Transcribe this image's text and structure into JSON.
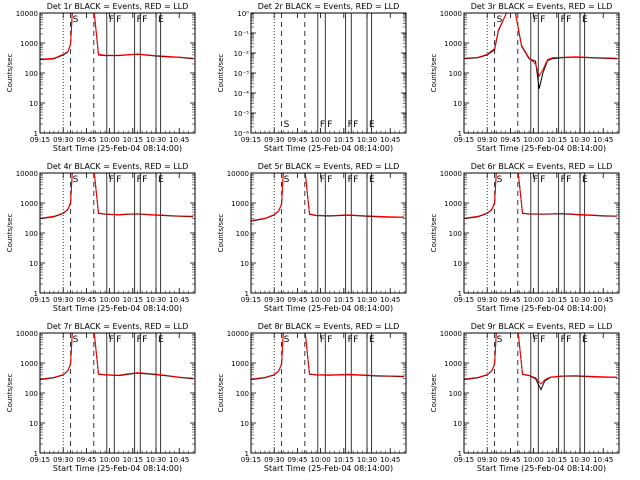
{
  "figure": {
    "xlabel": "Start Time (25-Feb-04 08:14:00)",
    "ylabel": "Counts/sec",
    "xticks": [
      "09:15",
      "09:30",
      "09:45",
      "10:00",
      "10:15",
      "10:30",
      "10:45"
    ],
    "yticks_log": [
      "1",
      "10",
      "100",
      "1000",
      "10000"
    ],
    "yticks_det2": [
      "10⁰",
      "10⁻¹",
      "10⁻²",
      "10⁻³",
      "10⁻⁴",
      "10⁻⁵",
      "10⁻⁶"
    ],
    "colors": {
      "events": "#000000",
      "lld": "#ff0000"
    },
    "markers": [
      {
        "t": 9.5,
        "style": "dotted",
        "label": ""
      },
      {
        "t": 9.58,
        "style": "dashed",
        "label": "S"
      },
      {
        "t": 9.83,
        "style": "dashed",
        "label": ""
      },
      {
        "t": 9.97,
        "style": "solid",
        "label": "F"
      },
      {
        "t": 10.05,
        "style": "solid",
        "label": "F"
      },
      {
        "t": 10.27,
        "style": "solid",
        "label": "F"
      },
      {
        "t": 10.33,
        "style": "solid",
        "label": "F"
      },
      {
        "t": 10.5,
        "style": "solid",
        "label": "E"
      },
      {
        "t": 10.55,
        "style": "solid",
        "label": ""
      }
    ]
  },
  "chart_data": [
    {
      "type": "line",
      "title": "Det 1r BLACK = Events, RED = LLD",
      "scale": "log",
      "ylim": [
        1,
        10000
      ],
      "xlim": [
        9.25,
        10.92
      ],
      "series": [
        {
          "name": "Events",
          "x": [
            9.25,
            9.4,
            9.5,
            9.55,
            9.58,
            9.6,
            9.83,
            9.88,
            9.95,
            10.1,
            10.2,
            10.3,
            10.45,
            10.6,
            10.75,
            10.9
          ],
          "y": [
            280,
            300,
            400,
            500,
            900,
            15000,
            15000,
            400,
            380,
            380,
            400,
            420,
            380,
            350,
            330,
            300
          ]
        },
        {
          "name": "LLD",
          "x": [
            9.25,
            9.4,
            9.5,
            9.55,
            9.58,
            9.6,
            9.83,
            9.88,
            9.95,
            10.1,
            10.2,
            10.3,
            10.45,
            10.6,
            10.75,
            10.9
          ],
          "y": [
            290,
            310,
            420,
            520,
            950,
            15000,
            15000,
            420,
            390,
            390,
            410,
            430,
            390,
            360,
            340,
            310
          ]
        }
      ]
    },
    {
      "type": "line",
      "title": "Det 2r BLACK = Events, RED = LLD",
      "scale": "log",
      "ylim": [
        1e-06,
        1
      ],
      "xlim": [
        9.25,
        10.92
      ],
      "series": []
    },
    {
      "type": "line",
      "title": "Det 3r BLACK = Events, RED = LLD",
      "scale": "log",
      "ylim": [
        1,
        10000
      ],
      "xlim": [
        9.25,
        10.92
      ],
      "series": [
        {
          "name": "Events",
          "x": [
            9.25,
            9.4,
            9.5,
            9.58,
            9.62,
            9.72,
            9.8,
            9.87,
            9.95,
            10.02,
            10.06,
            10.1,
            10.15,
            10.2,
            10.3,
            10.45,
            10.6,
            10.9
          ],
          "y": [
            300,
            320,
            400,
            600,
            2500,
            12000,
            12000,
            800,
            300,
            250,
            30,
            100,
            260,
            300,
            320,
            340,
            320,
            300
          ]
        },
        {
          "name": "LLD",
          "x": [
            9.25,
            9.4,
            9.5,
            9.58,
            9.62,
            9.72,
            9.8,
            9.87,
            9.95,
            10.02,
            10.06,
            10.1,
            10.15,
            10.2,
            10.3,
            10.45,
            10.6,
            10.9
          ],
          "y": [
            310,
            330,
            420,
            650,
            2700,
            12000,
            12000,
            850,
            320,
            200,
            80,
            130,
            280,
            320,
            330,
            350,
            330,
            310
          ]
        }
      ]
    },
    {
      "type": "line",
      "title": "Det 4r BLACK = Events, RED = LLD",
      "scale": "log",
      "ylim": [
        1,
        10000
      ],
      "xlim": [
        9.25,
        10.92
      ],
      "series": [
        {
          "name": "Events",
          "x": [
            9.25,
            9.4,
            9.5,
            9.55,
            9.58,
            9.6,
            9.83,
            9.88,
            9.95,
            10.1,
            10.2,
            10.3,
            10.45,
            10.6,
            10.75,
            10.9
          ],
          "y": [
            300,
            350,
            450,
            600,
            1000,
            15000,
            15000,
            450,
            420,
            400,
            420,
            430,
            400,
            380,
            360,
            350
          ]
        },
        {
          "name": "LLD",
          "x": [
            9.25,
            9.4,
            9.5,
            9.55,
            9.58,
            9.6,
            9.83,
            9.88,
            9.95,
            10.1,
            10.2,
            10.3,
            10.45,
            10.6,
            10.75,
            10.9
          ],
          "y": [
            310,
            360,
            460,
            620,
            1050,
            15000,
            15000,
            460,
            430,
            410,
            430,
            440,
            410,
            390,
            370,
            360
          ]
        }
      ]
    },
    {
      "type": "line",
      "title": "Det 5r BLACK = Events, RED = LLD",
      "scale": "log",
      "ylim": [
        1,
        10000
      ],
      "xlim": [
        9.25,
        10.92
      ],
      "series": [
        {
          "name": "Events",
          "x": [
            9.25,
            9.4,
            9.5,
            9.55,
            9.58,
            9.6,
            9.83,
            9.88,
            9.95,
            10.1,
            10.2,
            10.3,
            10.45,
            10.6,
            10.75,
            10.9
          ],
          "y": [
            250,
            300,
            400,
            550,
            900,
            15000,
            15000,
            420,
            380,
            370,
            380,
            390,
            370,
            350,
            340,
            330
          ]
        },
        {
          "name": "LLD",
          "x": [
            9.25,
            9.4,
            9.5,
            9.55,
            9.58,
            9.6,
            9.83,
            9.88,
            9.95,
            10.1,
            10.2,
            10.3,
            10.45,
            10.6,
            10.75,
            10.9
          ],
          "y": [
            260,
            310,
            410,
            560,
            950,
            15000,
            15000,
            430,
            390,
            380,
            390,
            400,
            380,
            360,
            350,
            340
          ]
        }
      ]
    },
    {
      "type": "line",
      "title": "Det 6r BLACK = Events, RED = LLD",
      "scale": "log",
      "ylim": [
        1,
        10000
      ],
      "xlim": [
        9.25,
        10.92
      ],
      "series": [
        {
          "name": "Events",
          "x": [
            9.25,
            9.4,
            9.5,
            9.55,
            9.58,
            9.6,
            9.83,
            9.88,
            9.95,
            10.1,
            10.2,
            10.3,
            10.45,
            10.6,
            10.75,
            10.9
          ],
          "y": [
            300,
            350,
            450,
            600,
            1000,
            15000,
            15000,
            450,
            430,
            420,
            430,
            440,
            410,
            390,
            370,
            360
          ]
        },
        {
          "name": "LLD",
          "x": [
            9.25,
            9.4,
            9.5,
            9.55,
            9.58,
            9.6,
            9.83,
            9.88,
            9.95,
            10.1,
            10.2,
            10.3,
            10.45,
            10.6,
            10.75,
            10.9
          ],
          "y": [
            310,
            360,
            460,
            620,
            1050,
            15000,
            15000,
            460,
            440,
            430,
            440,
            450,
            420,
            400,
            380,
            370
          ]
        }
      ]
    },
    {
      "type": "line",
      "title": "Det 7r BLACK = Events, RED = LLD",
      "scale": "log",
      "ylim": [
        1,
        10000
      ],
      "xlim": [
        9.25,
        10.92
      ],
      "series": [
        {
          "name": "Events",
          "x": [
            9.25,
            9.4,
            9.5,
            9.55,
            9.58,
            9.6,
            9.83,
            9.88,
            9.95,
            10.1,
            10.2,
            10.3,
            10.45,
            10.6,
            10.75,
            10.9
          ],
          "y": [
            280,
            320,
            400,
            550,
            900,
            15000,
            15000,
            420,
            400,
            380,
            420,
            460,
            420,
            380,
            330,
            300
          ]
        },
        {
          "name": "LLD",
          "x": [
            9.25,
            9.4,
            9.5,
            9.55,
            9.58,
            9.6,
            9.83,
            9.88,
            9.95,
            10.1,
            10.2,
            10.3,
            10.45,
            10.6,
            10.75,
            10.9
          ],
          "y": [
            290,
            330,
            410,
            560,
            950,
            15000,
            15000,
            430,
            410,
            390,
            440,
            480,
            440,
            390,
            340,
            310
          ]
        }
      ]
    },
    {
      "type": "line",
      "title": "Det 8r BLACK = Events, RED = LLD",
      "scale": "log",
      "ylim": [
        1,
        10000
      ],
      "xlim": [
        9.25,
        10.92
      ],
      "series": [
        {
          "name": "Events",
          "x": [
            9.25,
            9.4,
            9.5,
            9.55,
            9.58,
            9.6,
            9.83,
            9.88,
            9.95,
            10.1,
            10.2,
            10.3,
            10.45,
            10.6,
            10.75,
            10.9
          ],
          "y": [
            280,
            320,
            400,
            550,
            900,
            15000,
            15000,
            420,
            400,
            390,
            400,
            410,
            390,
            370,
            360,
            350
          ]
        },
        {
          "name": "LLD",
          "x": [
            9.25,
            9.4,
            9.5,
            9.55,
            9.58,
            9.6,
            9.83,
            9.88,
            9.95,
            10.1,
            10.2,
            10.3,
            10.45,
            10.6,
            10.75,
            10.9
          ],
          "y": [
            290,
            330,
            410,
            560,
            950,
            15000,
            15000,
            430,
            410,
            400,
            410,
            420,
            400,
            380,
            370,
            360
          ]
        }
      ]
    },
    {
      "type": "line",
      "title": "Det 9r BLACK = Events, RED = LLD",
      "scale": "log",
      "ylim": [
        1,
        10000
      ],
      "xlim": [
        9.25,
        10.92
      ],
      "series": [
        {
          "name": "Events",
          "x": [
            9.25,
            9.4,
            9.5,
            9.55,
            9.58,
            9.6,
            9.83,
            9.88,
            9.95,
            10.02,
            10.08,
            10.12,
            10.18,
            10.3,
            10.45,
            10.6,
            10.75,
            10.9
          ],
          "y": [
            280,
            320,
            400,
            550,
            900,
            15000,
            15000,
            420,
            380,
            300,
            130,
            250,
            330,
            360,
            370,
            350,
            340,
            330
          ]
        },
        {
          "name": "LLD",
          "x": [
            9.25,
            9.4,
            9.5,
            9.55,
            9.58,
            9.6,
            9.83,
            9.88,
            9.95,
            10.02,
            10.08,
            10.12,
            10.18,
            10.3,
            10.45,
            10.6,
            10.75,
            10.9
          ],
          "y": [
            290,
            330,
            410,
            560,
            950,
            15000,
            15000,
            430,
            390,
            320,
            200,
            280,
            340,
            370,
            380,
            360,
            350,
            340
          ]
        }
      ]
    }
  ]
}
